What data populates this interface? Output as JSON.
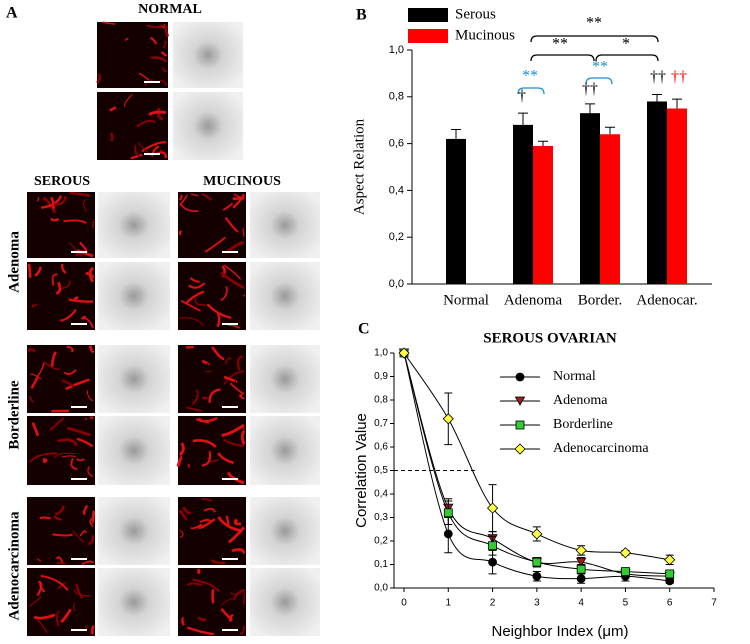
{
  "panel_labels": [
    "A",
    "B",
    "C"
  ],
  "panel_a": {
    "normal_title": "NORMAL",
    "column_titles": [
      "SEROUS",
      "MUCINOUS"
    ],
    "row_labels": [
      "Adenoma",
      "Borderline",
      "Adenocarcinoma"
    ]
  },
  "chart_data": [
    {
      "type": "bar",
      "categories": [
        "Normal",
        "Adenoma",
        "Border.",
        "Adenocar."
      ],
      "ylabel": "Aspect Relation",
      "ylim": [
        0,
        1
      ],
      "yticks": [
        {
          "value": 0,
          "label": "0,0"
        },
        {
          "value": 0.2,
          "label": "0,2"
        },
        {
          "value": 0.4,
          "label": "0,4"
        },
        {
          "value": 0.6,
          "label": "0,6"
        },
        {
          "value": 0.8,
          "label": "0,8"
        },
        {
          "value": 1,
          "label": "1,0"
        }
      ],
      "series": [
        {
          "name": "Serous",
          "color": "#000000",
          "values": [
            0.62,
            0.68,
            0.73,
            0.78
          ],
          "errors": [
            0.04,
            0.05,
            0.04,
            0.03
          ]
        },
        {
          "name": "Mucinous",
          "color": "#ff0000",
          "values": [
            null,
            0.59,
            0.64,
            0.75
          ],
          "errors": [
            null,
            0.02,
            0.03,
            0.04
          ]
        }
      ],
      "annotations": [
        {
          "text": "**",
          "color": "#000000"
        },
        {
          "text": "**",
          "color": "#000000"
        },
        {
          "text": "*",
          "color": "#000000"
        },
        {
          "text": "**",
          "color": "#1e90d0"
        },
        {
          "text": "**",
          "color": "#1e90d0"
        },
        {
          "text": "†",
          "color": "#000000"
        },
        {
          "text": "††",
          "color": "#000000"
        },
        {
          "text": "††",
          "color": "#000000"
        },
        {
          "text": "††",
          "color": "#ff0000"
        }
      ]
    },
    {
      "type": "line",
      "title": "SEROUS OVARIAN",
      "xlabel": "Neighbor Index (μm)",
      "ylabel": "Correlation Value",
      "x": [
        0,
        1,
        2,
        3,
        4,
        5,
        6
      ],
      "xlim": [
        0,
        7
      ],
      "xticks": [
        0,
        1,
        2,
        3,
        4,
        5,
        6,
        7
      ],
      "ylim": [
        0,
        1
      ],
      "yticks": [
        {
          "value": 0,
          "label": "0,0"
        },
        {
          "value": 0.1,
          "label": "0,1"
        },
        {
          "value": 0.2,
          "label": "0,2"
        },
        {
          "value": 0.3,
          "label": "0,3"
        },
        {
          "value": 0.4,
          "label": "0,4"
        },
        {
          "value": 0.5,
          "label": "0,5"
        },
        {
          "value": 0.6,
          "label": "0,6"
        },
        {
          "value": 0.7,
          "label": "0,7"
        },
        {
          "value": 0.8,
          "label": "0,8"
        },
        {
          "value": 0.9,
          "label": "0,9"
        },
        {
          "value": 1,
          "label": "1,0"
        }
      ],
      "reference_line": 0.5,
      "series": [
        {
          "name": "Normal",
          "color": "#000000",
          "marker": "circle",
          "values": [
            1.0,
            0.23,
            0.11,
            0.05,
            0.04,
            0.05,
            0.03
          ],
          "errors": [
            0,
            0.08,
            0.05,
            0.02,
            0.02,
            0.02,
            0.01
          ]
        },
        {
          "name": "Adenoma",
          "color": "#a01c1c",
          "marker": "triangle-down",
          "values": [
            1.0,
            0.34,
            0.21,
            0.11,
            0.11,
            0.06,
            0.05
          ],
          "errors": [
            0,
            0.04,
            0.03,
            0.02,
            0.02,
            0.01,
            0.01
          ]
        },
        {
          "name": "Borderline",
          "color": "#33cc33",
          "marker": "square",
          "values": [
            1.0,
            0.32,
            0.18,
            0.11,
            0.08,
            0.07,
            0.06
          ],
          "errors": [
            0,
            0.05,
            0.04,
            0.02,
            0.02,
            0.01,
            0.01
          ]
        },
        {
          "name": "Adenocarcinoma",
          "color": "#ffff44",
          "marker": "diamond",
          "values": [
            1.0,
            0.72,
            0.34,
            0.23,
            0.16,
            0.15,
            0.12
          ],
          "errors": [
            0,
            0.11,
            0.1,
            0.03,
            0.02,
            0.01,
            0.02
          ]
        }
      ]
    }
  ]
}
